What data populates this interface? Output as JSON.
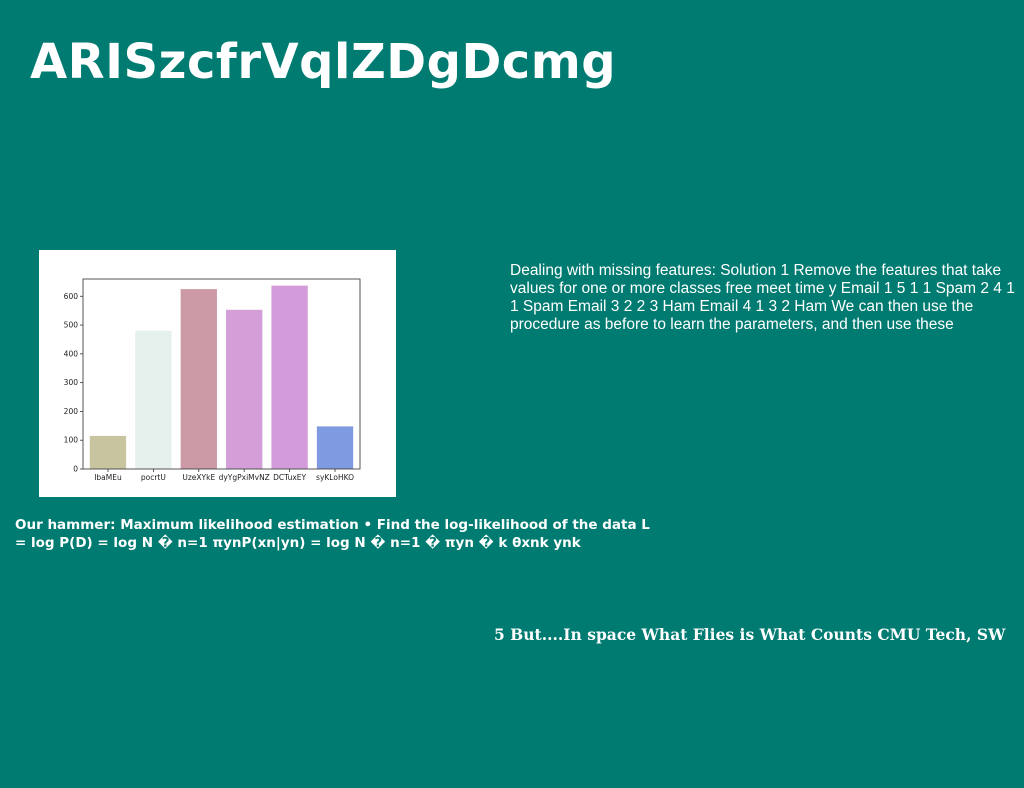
{
  "slide": {
    "title": "ARISzcfrVqlZDgDcmg",
    "body_text": "Dealing with missing features: Solution 1 Remove the features that take values for one or more classes free meet time y Email 1 5 1 1 Spam 2 4 1 1 Spam Email 3 2 2 3 Ham Email 4 1 3 2 Ham We can then use the procedure as before to learn the parameters, and then use these",
    "hammer_text": "Our hammer: Maximum likelihood estimation • Find the log-likelihood of the data L = log P(D) = log N � n=1 πynP(xn|yn) = log N � n=1 � πyn � k θxnk ynk",
    "footer_text": "5 But....In space What Flies is What Counts CMU Tech, SW"
  },
  "chart_data": {
    "type": "bar",
    "categories": [
      "IbaMEu",
      "pocrtU",
      "UzeXYkE",
      "dyYgPxiMvNZ",
      "DCTuxEY",
      "syKLoHKO"
    ],
    "values": [
      115,
      480,
      625,
      553,
      637,
      148
    ],
    "colors": [
      "#c8c4a0",
      "#e6f0ec",
      "#cc9aa6",
      "#d49ed8",
      "#d39bd9",
      "#7f9ae0"
    ],
    "yticks": [
      0,
      100,
      200,
      300,
      400,
      500,
      600
    ],
    "ylim": [
      0,
      660
    ],
    "title": "",
    "xlabel": "",
    "ylabel": "",
    "grid": false
  }
}
